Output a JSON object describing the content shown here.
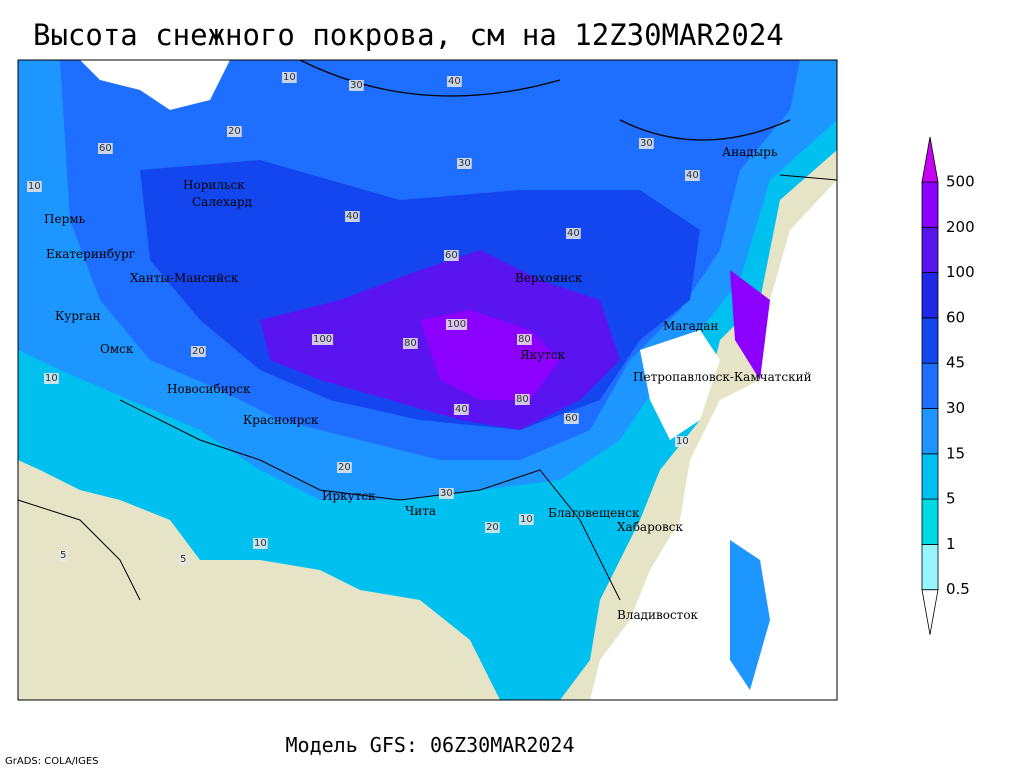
{
  "header": {
    "title": "Высота снежного покрова, см на 12Z30MAR2024"
  },
  "footer": {
    "model": "Модель GFS: 06Z30MAR2024",
    "credit": "GrADS: COLA/IGES"
  },
  "colorbar": {
    "levels": [
      0.5,
      1,
      5,
      15,
      30,
      45,
      60,
      100,
      200,
      500
    ],
    "colors": [
      "#ffffff",
      "#96f5ff",
      "#00dce6",
      "#00c0f0",
      "#1e96ff",
      "#1e6eff",
      "#1446f0",
      "#1e28e6",
      "#5a14f0",
      "#8c00ff",
      "#c800f5"
    ]
  },
  "cities": [
    "Норильск",
    "Салехард",
    "Пермь",
    "Екатеринбург",
    "Ханты-Мансийск",
    "Курган",
    "Омск",
    "Новосибирск",
    "Красноярск",
    "Иркутск",
    "Чита",
    "Верхоянск",
    "Якутск",
    "Магадан",
    "Анадырь",
    "Петропавловск-Камчатский",
    "Благовещенск",
    "Хабаровск",
    "Владивосток"
  ],
  "contour_labels": [
    "10",
    "30",
    "40",
    "20",
    "10",
    "30",
    "30",
    "40",
    "40",
    "60",
    "80",
    "100",
    "80",
    "60",
    "40",
    "20",
    "20",
    "30",
    "10",
    "10",
    "5",
    "5",
    "10",
    "40",
    "30",
    "20",
    "10",
    "60",
    "80",
    "100"
  ]
}
